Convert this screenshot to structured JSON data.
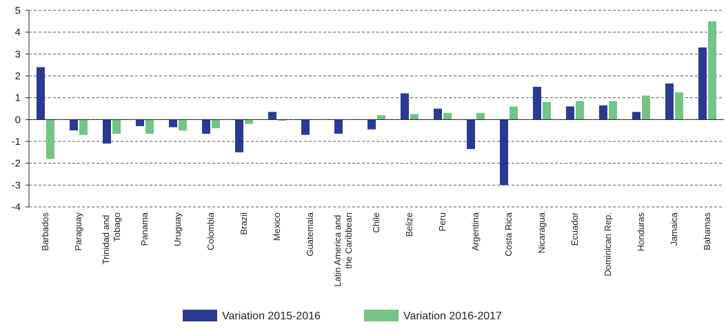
{
  "chart_data": {
    "type": "bar",
    "categories": [
      "Barbados",
      "Paraguay",
      "Trinidad and Tobago",
      "Panama",
      "Uruguay",
      "Colombia",
      "Brazil",
      "Mexico",
      "Guatemala",
      "Latin America and the Caribbean",
      "Chile",
      "Belize",
      "Peru",
      "Argentina",
      "Costa Rica",
      "Nicaragua",
      "Ecuador",
      "Dominican Rep.",
      "Honduras",
      "Jamaica",
      "Bahamas"
    ],
    "series": [
      {
        "name": "Variation 2015-2016",
        "color": "#2a3a94",
        "values": [
          2.4,
          -0.5,
          -1.1,
          -0.3,
          -0.35,
          -0.65,
          -1.5,
          0.35,
          -0.7,
          -0.65,
          -0.45,
          1.2,
          0.5,
          -1.35,
          -3.0,
          1.5,
          0.6,
          0.65,
          0.35,
          1.65,
          3.3
        ]
      },
      {
        "name": "Variation 2016-2017",
        "color": "#74c487",
        "values": [
          -1.8,
          -0.7,
          -0.65,
          -0.65,
          -0.5,
          -0.4,
          -0.2,
          -0.05,
          0,
          0,
          0.2,
          0.25,
          0.3,
          0.3,
          0.6,
          0.8,
          0.85,
          0.85,
          1.1,
          1.25,
          4.5
        ]
      }
    ],
    "ylim": [
      -4,
      5
    ],
    "yticks": [
      -4,
      -3,
      -2,
      -1,
      0,
      1,
      2,
      3,
      4,
      5
    ],
    "grid": true
  }
}
